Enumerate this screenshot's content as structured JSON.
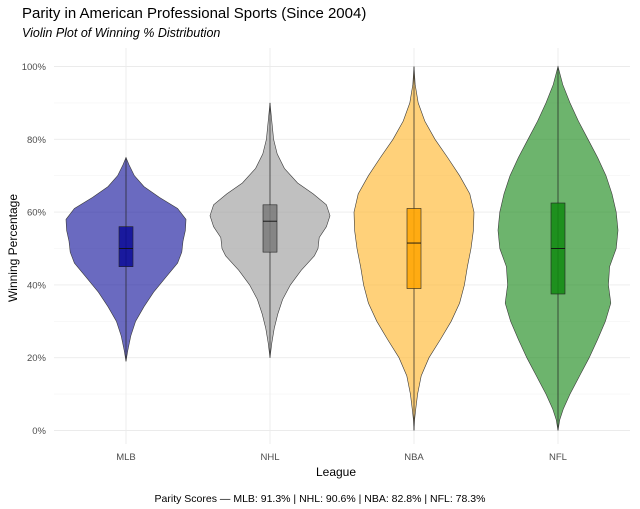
{
  "chart_data": {
    "type": "violin",
    "title": "Parity in American Professional Sports (Since 2004)",
    "subtitle": "Violin Plot of Winning % Distribution",
    "xlabel": "League",
    "ylabel": "Winning Percentage",
    "ylim": [
      0,
      1
    ],
    "yticks": [
      {
        "value": 0,
        "label": "0%"
      },
      {
        "value": 0.2,
        "label": "20%"
      },
      {
        "value": 0.4,
        "label": "40%"
      },
      {
        "value": 0.6,
        "label": "60%"
      },
      {
        "value": 0.8,
        "label": "80%"
      },
      {
        "value": 1.0,
        "label": "100%"
      }
    ],
    "grid": true,
    "caption": "Parity Scores — MLB: 91.3%  |  NHL: 90.6%  |  NBA: 82.8%  |  NFL: 78.3%",
    "series": [
      {
        "name": "MLB",
        "color": "#1a1a9e",
        "box_color": "#0a0a96",
        "min": 0.19,
        "q1": 0.45,
        "median": 0.5,
        "q3": 0.56,
        "max": 0.75,
        "density": [
          [
            0.19,
            0.0
          ],
          [
            0.22,
            0.03
          ],
          [
            0.26,
            0.08
          ],
          [
            0.3,
            0.16
          ],
          [
            0.34,
            0.3
          ],
          [
            0.38,
            0.46
          ],
          [
            0.42,
            0.66
          ],
          [
            0.46,
            0.86
          ],
          [
            0.49,
            0.93
          ],
          [
            0.52,
            0.95
          ],
          [
            0.55,
            0.99
          ],
          [
            0.58,
            1.0
          ],
          [
            0.61,
            0.86
          ],
          [
            0.64,
            0.56
          ],
          [
            0.67,
            0.3
          ],
          [
            0.7,
            0.14
          ],
          [
            0.73,
            0.05
          ],
          [
            0.75,
            0.0
          ]
        ]
      },
      {
        "name": "NHL",
        "color": "#9e9e9e",
        "box_color": "#7a7a7a",
        "min": 0.2,
        "q1": 0.49,
        "median": 0.575,
        "q3": 0.62,
        "max": 0.9,
        "density": [
          [
            0.2,
            0.0
          ],
          [
            0.24,
            0.03
          ],
          [
            0.28,
            0.07
          ],
          [
            0.32,
            0.13
          ],
          [
            0.36,
            0.21
          ],
          [
            0.4,
            0.34
          ],
          [
            0.44,
            0.52
          ],
          [
            0.48,
            0.74
          ],
          [
            0.5,
            0.8
          ],
          [
            0.53,
            0.82
          ],
          [
            0.56,
            0.94
          ],
          [
            0.59,
            1.0
          ],
          [
            0.62,
            0.94
          ],
          [
            0.65,
            0.72
          ],
          [
            0.68,
            0.46
          ],
          [
            0.72,
            0.24
          ],
          [
            0.76,
            0.12
          ],
          [
            0.8,
            0.06
          ],
          [
            0.85,
            0.03
          ],
          [
            0.9,
            0.0
          ]
        ]
      },
      {
        "name": "NBA",
        "color": "#ffb833",
        "box_color": "#ffa500",
        "min": 0.0,
        "q1": 0.39,
        "median": 0.515,
        "q3": 0.61,
        "max": 1.0,
        "density": [
          [
            0.0,
            0.0
          ],
          [
            0.03,
            0.01
          ],
          [
            0.06,
            0.03
          ],
          [
            0.1,
            0.06
          ],
          [
            0.15,
            0.12
          ],
          [
            0.2,
            0.25
          ],
          [
            0.25,
            0.44
          ],
          [
            0.3,
            0.62
          ],
          [
            0.35,
            0.76
          ],
          [
            0.4,
            0.84
          ],
          [
            0.45,
            0.89
          ],
          [
            0.5,
            0.95
          ],
          [
            0.55,
            0.99
          ],
          [
            0.6,
            1.0
          ],
          [
            0.65,
            0.93
          ],
          [
            0.7,
            0.76
          ],
          [
            0.75,
            0.56
          ],
          [
            0.8,
            0.35
          ],
          [
            0.85,
            0.18
          ],
          [
            0.9,
            0.07
          ],
          [
            0.95,
            0.02
          ],
          [
            1.0,
            0.0
          ]
        ]
      },
      {
        "name": "NFL",
        "color": "#1e8c1e",
        "box_color": "#108a10",
        "min": 0.0,
        "q1": 0.375,
        "median": 0.5,
        "q3": 0.625,
        "max": 1.0,
        "density": [
          [
            0.0,
            0.0
          ],
          [
            0.03,
            0.03
          ],
          [
            0.06,
            0.09
          ],
          [
            0.1,
            0.2
          ],
          [
            0.15,
            0.36
          ],
          [
            0.2,
            0.52
          ],
          [
            0.25,
            0.66
          ],
          [
            0.3,
            0.79
          ],
          [
            0.35,
            0.88
          ],
          [
            0.4,
            0.84
          ],
          [
            0.45,
            0.86
          ],
          [
            0.5,
            0.97
          ],
          [
            0.55,
            1.0
          ],
          [
            0.6,
            0.97
          ],
          [
            0.65,
            0.9
          ],
          [
            0.7,
            0.8
          ],
          [
            0.75,
            0.66
          ],
          [
            0.8,
            0.5
          ],
          [
            0.85,
            0.34
          ],
          [
            0.9,
            0.2
          ],
          [
            0.95,
            0.08
          ],
          [
            1.0,
            0.0
          ]
        ]
      }
    ]
  }
}
